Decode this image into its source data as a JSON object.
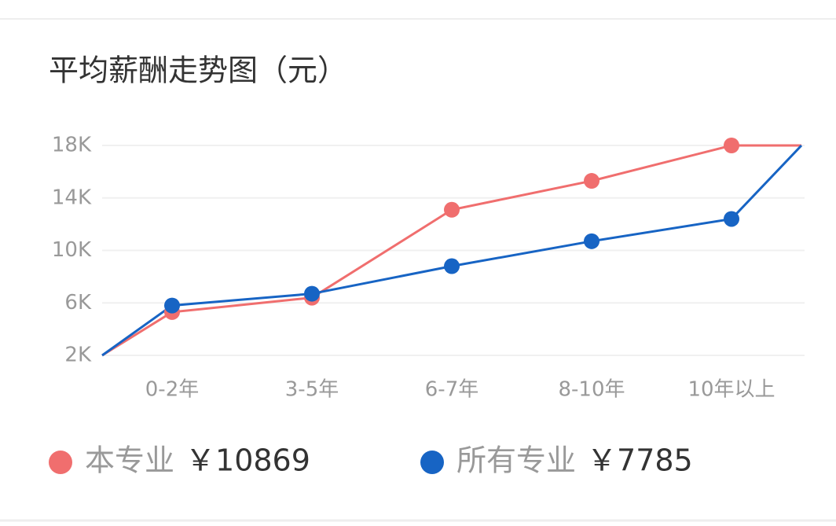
{
  "chart_data": {
    "type": "line",
    "title": "平均薪酬走势图（元）",
    "categories": [
      null,
      "0-2年",
      "3-5年",
      "6-7年",
      "8-10年",
      "10年以上",
      null
    ],
    "series": [
      {
        "name": "本专业",
        "summary": "￥10869",
        "color": "#f06e6e",
        "values": [
          2000,
          5300,
          6400,
          13100,
          15300,
          18000,
          18000
        ]
      },
      {
        "name": "所有专业",
        "summary": "￥7785",
        "color": "#1764c4",
        "values": [
          2000,
          5800,
          6700,
          8800,
          10700,
          12400,
          18000
        ]
      }
    ],
    "ylim": [
      2000,
      18000
    ],
    "yticks": [
      {
        "value": 2000,
        "label": "2K"
      },
      {
        "value": 6000,
        "label": "6K"
      },
      {
        "value": 10000,
        "label": "10K"
      },
      {
        "value": 14000,
        "label": "14K"
      },
      {
        "value": 18000,
        "label": "18K"
      }
    ],
    "grid": true
  }
}
